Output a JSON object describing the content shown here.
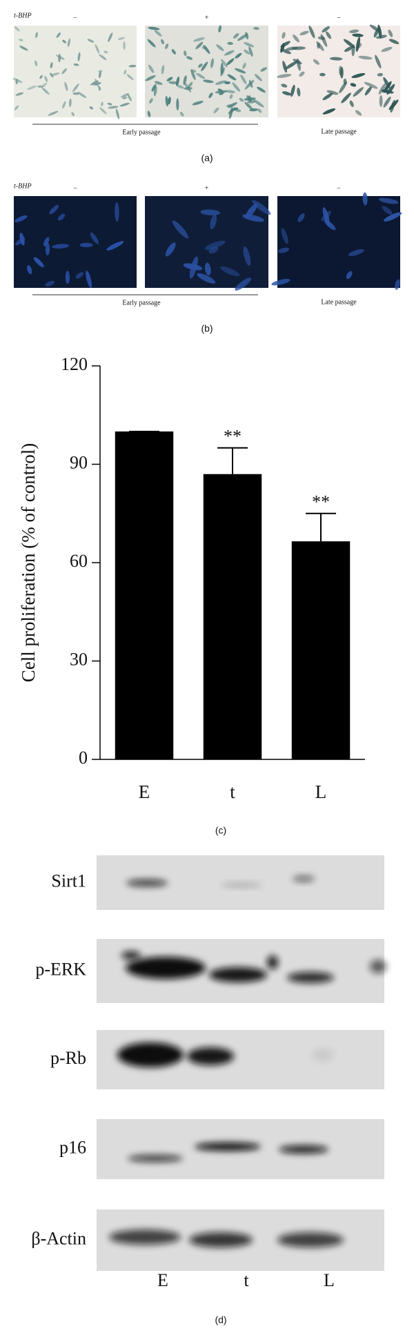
{
  "panel_a": {
    "prefix": "t-BHP",
    "treatment": [
      "−",
      "+",
      "−"
    ],
    "groups": [
      "Early passage",
      "Late passage"
    ],
    "caption": "(a)"
  },
  "panel_b": {
    "prefix": "t-BHP",
    "treatment": [
      "−",
      "+",
      "−"
    ],
    "groups": [
      "Early passage",
      "Late passage"
    ],
    "caption": "(b)"
  },
  "chart_data": {
    "type": "bar",
    "ylabel": "Cell proliferation (% of control)",
    "categories": [
      "E",
      "t",
      "L"
    ],
    "values": [
      100,
      87,
      66.5
    ],
    "errors": [
      0,
      8,
      8.5
    ],
    "significance": [
      null,
      "**",
      "**"
    ],
    "color": "#000000",
    "ylim": [
      0,
      120
    ],
    "yticks": [
      0,
      30,
      60,
      90,
      120
    ],
    "caption": "(c)"
  },
  "panel_d": {
    "proteins": [
      "Sirt1",
      "p-ERK",
      "p-Rb",
      "p16",
      "β-Actin"
    ],
    "lanes": [
      "E",
      "t",
      "L"
    ],
    "caption": "(d)"
  }
}
